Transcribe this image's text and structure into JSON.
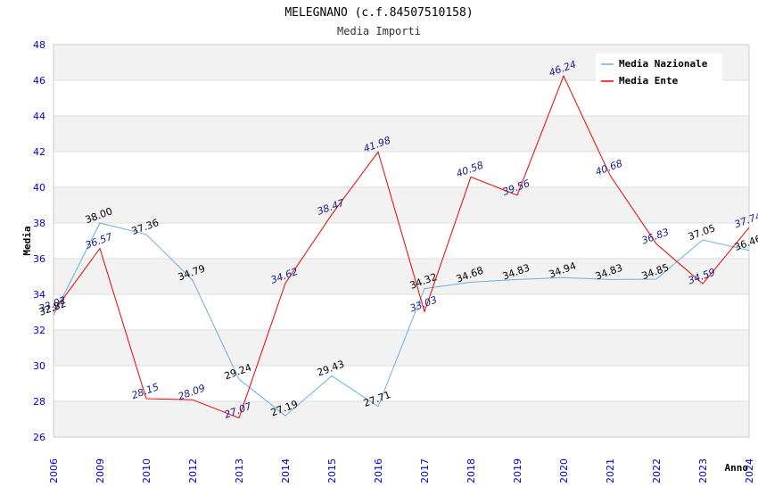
{
  "chart_data": {
    "type": "line",
    "title": "MELEGNANO (c.f.84507510158)",
    "subtitle": "Media Importi",
    "xlabel": "Anno",
    "ylabel": "Media",
    "ylim": [
      26,
      48
    ],
    "yticks": [
      26,
      28,
      30,
      32,
      34,
      36,
      38,
      40,
      42,
      44,
      46,
      48
    ],
    "categories": [
      "2006",
      "2009",
      "2010",
      "2012",
      "2013",
      "2014",
      "2015",
      "2016",
      "2017",
      "2018",
      "2019",
      "2020",
      "2021",
      "2022",
      "2023",
      "2024"
    ],
    "series": [
      {
        "name": "Media Nazionale",
        "color": "#6aaee8",
        "label_color": "#000000",
        "values": [
          32.82,
          38.0,
          37.36,
          34.79,
          29.24,
          27.19,
          29.43,
          27.71,
          34.32,
          34.68,
          34.83,
          34.94,
          34.83,
          34.85,
          37.05,
          36.46
        ],
        "labels": [
          "32.82",
          "38.00",
          "37.36",
          "34.79",
          "29.24",
          "27.19",
          "29.43",
          "27.71",
          "34.32",
          "34.68",
          "34.83",
          "34.94",
          "34.83",
          "34.85",
          "37.05",
          "36.46"
        ]
      },
      {
        "name": "Media Ente",
        "color": "#ee0000",
        "label_color": "#1a1a8c",
        "values": [
          33.02,
          36.57,
          28.15,
          28.09,
          27.07,
          34.62,
          38.47,
          41.98,
          33.03,
          40.58,
          39.56,
          46.24,
          40.68,
          36.83,
          34.59,
          37.74
        ],
        "labels": [
          "33.02",
          "36.57",
          "28.15",
          "28.09",
          "27.07",
          "34.62",
          "38.47",
          "41.98",
          "33.03",
          "40.58",
          "39.56",
          "46.24",
          "40.68",
          "36.83",
          "34.59",
          "37.74"
        ]
      }
    ],
    "grid": true,
    "legend_position": "top-right",
    "tick_color": "#0000cc",
    "band_color": "#f2f2f2"
  }
}
